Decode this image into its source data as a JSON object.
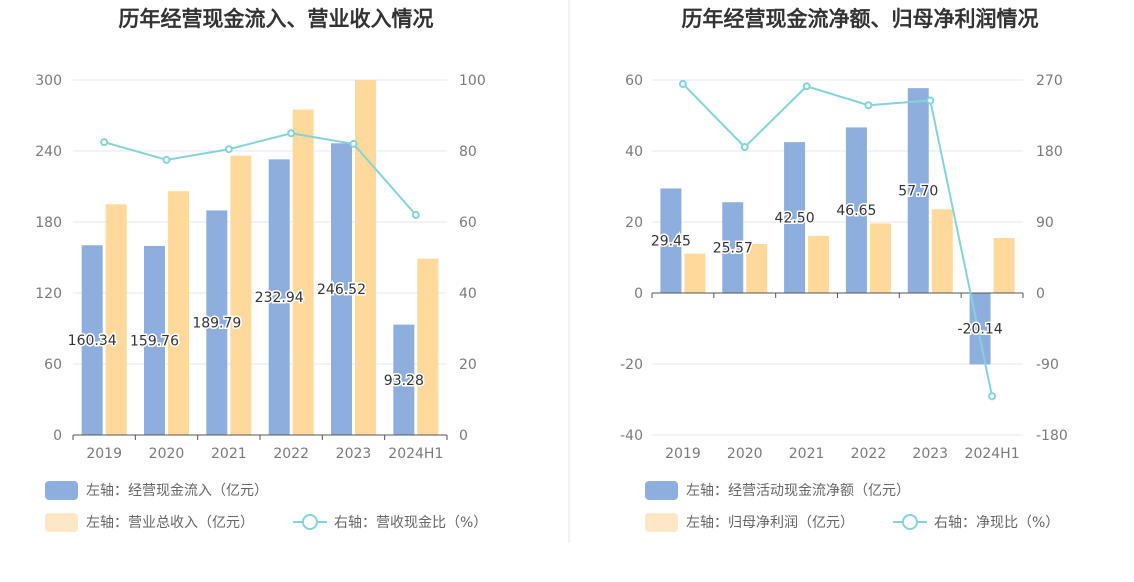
{
  "chart_data": [
    {
      "type": "bar",
      "title": "历年经营现金流入、营业收入情况",
      "categories": [
        "2019",
        "2020",
        "2021",
        "2022",
        "2023",
        "2024H1"
      ],
      "left_axis": {
        "ticks": [
          "0",
          "60",
          "120",
          "180",
          "240",
          "300"
        ],
        "ylim": [
          0,
          300
        ]
      },
      "right_axis": {
        "ticks": [
          "0",
          "20",
          "40",
          "60",
          "80",
          "100"
        ],
        "ylim": [
          0,
          100
        ]
      },
      "grid": true,
      "series": [
        {
          "name": "左轴：经营现金流入（亿元）",
          "type": "bar",
          "axis": "left",
          "color": "#8eaedd",
          "values": [
            160.34,
            159.76,
            189.79,
            232.94,
            246.52,
            93.28
          ],
          "labels": [
            "160.34",
            "159.76",
            "189.79",
            "232.94",
            "246.52",
            "93.28"
          ]
        },
        {
          "name": "左轴：营业总收入（亿元）",
          "type": "bar",
          "axis": "left",
          "color": "#fed99b",
          "values": [
            195,
            206,
            236,
            275,
            300,
            149
          ]
        },
        {
          "name": "右轴：营收现金比（%）",
          "type": "line",
          "axis": "right",
          "color": "#83d3d9",
          "values": [
            82.5,
            77.5,
            80.5,
            85,
            82,
            62
          ]
        }
      ],
      "legend_position": "bottom-left"
    },
    {
      "type": "bar",
      "title": "历年经营现金流净额、归母净利润情况",
      "categories": [
        "2019",
        "2020",
        "2021",
        "2022",
        "2023",
        "2024H1"
      ],
      "left_axis": {
        "ticks": [
          "-40",
          "-20",
          "0",
          "20",
          "40",
          "60"
        ],
        "ylim": [
          -40,
          60
        ]
      },
      "right_axis": {
        "ticks": [
          "-180",
          "-90",
          "0",
          "90",
          "180",
          "270"
        ],
        "ylim": [
          -180,
          270
        ]
      },
      "grid": true,
      "series": [
        {
          "name": "左轴：经营活动现金流净额（亿元）",
          "type": "bar",
          "axis": "left",
          "color": "#8eaedd",
          "values": [
            29.45,
            25.57,
            42.5,
            46.65,
            57.7,
            -20.14
          ],
          "labels": [
            "29.45",
            "25.57",
            "42.50",
            "46.65",
            "57.70",
            "-20.14"
          ]
        },
        {
          "name": "左轴：归母净利润（亿元）",
          "type": "bar",
          "axis": "left",
          "color": "#fed99b",
          "values": [
            11.1,
            13.8,
            16.1,
            19.6,
            23.6,
            15.5
          ]
        },
        {
          "name": "右轴：净现比（%）",
          "type": "line",
          "axis": "right",
          "color": "#83d3d9",
          "values": [
            265,
            185,
            262,
            238,
            244,
            -131
          ]
        }
      ],
      "legend_position": "bottom-left"
    }
  ],
  "theme": {
    "grid_color": "#e4e7f0",
    "axis_color": "#555555",
    "legend_line_color": "#83d3d9",
    "legend_bar2_color": "#fde7c4"
  }
}
